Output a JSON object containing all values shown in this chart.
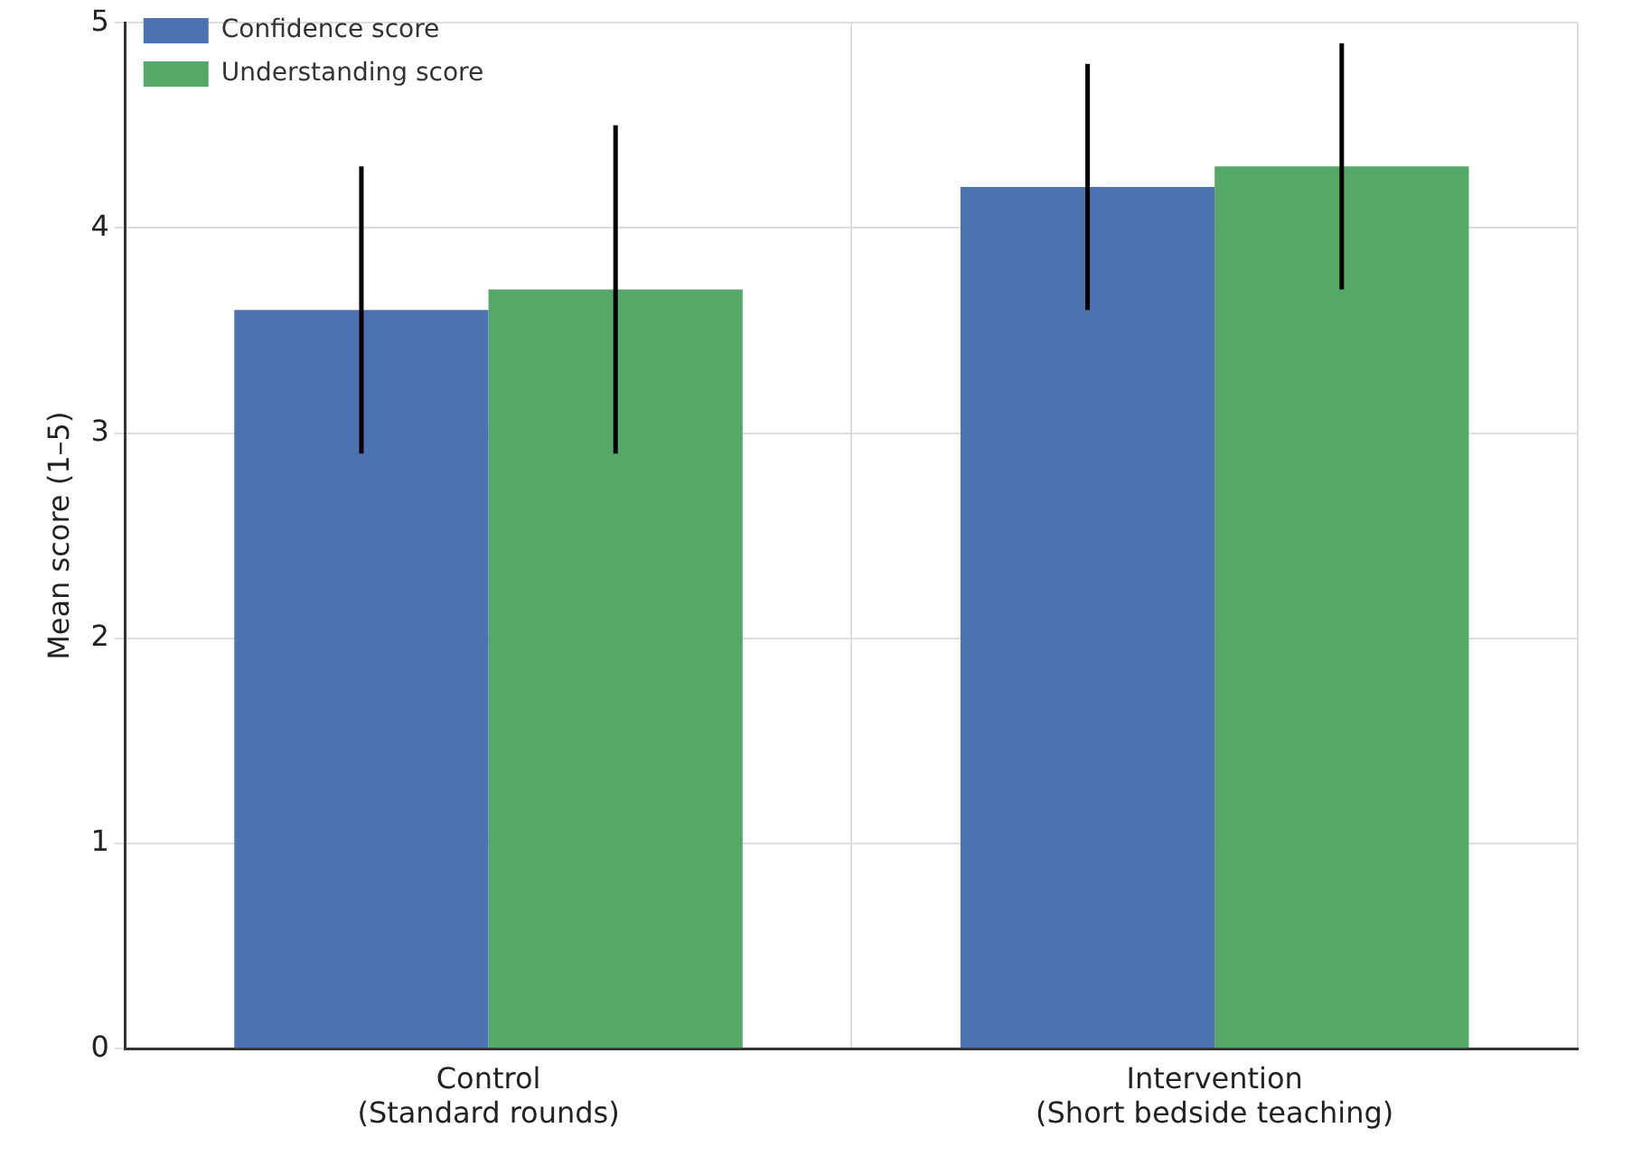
{
  "chart_data": {
    "type": "bar",
    "ylabel": "Mean score (1–5)",
    "categories": [
      "Control\n(Standard rounds)",
      "Intervention\n(Short bedside teaching)"
    ],
    "series": [
      {
        "name": "Confidence score",
        "color": "#4c72b0",
        "values": [
          3.6,
          4.2
        ],
        "errors": [
          0.7,
          0.6
        ]
      },
      {
        "name": "Understanding score",
        "color": "#55a868",
        "values": [
          3.7,
          4.3
        ],
        "errors": [
          0.8,
          0.6
        ]
      }
    ],
    "ylim": [
      0,
      5
    ],
    "yticks": [
      0,
      1,
      2,
      3,
      4,
      5
    ],
    "grid": true,
    "legend": "top left"
  }
}
